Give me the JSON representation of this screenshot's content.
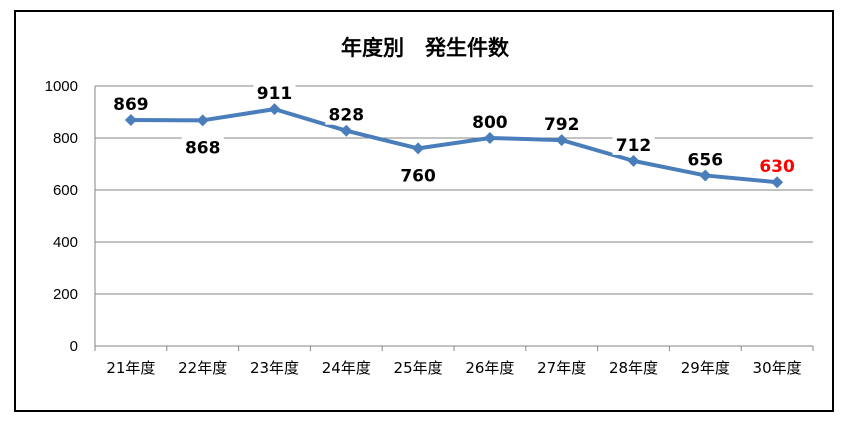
{
  "chart_data": {
    "type": "line",
    "title": "年度別　発生件数",
    "categories": [
      "21年度",
      "22年度",
      "23年度",
      "24年度",
      "25年度",
      "26年度",
      "27年度",
      "28年度",
      "29年度",
      "30年度"
    ],
    "series": [
      {
        "values": [
          869,
          868,
          911,
          828,
          760,
          800,
          792,
          712,
          656,
          630
        ]
      }
    ],
    "ylim": [
      0,
      1000
    ],
    "yticks": [
      0,
      200,
      400,
      600,
      800,
      1000
    ],
    "grid": true,
    "legend": "none",
    "line_color": "#4a7ebb",
    "label_color": "#000000",
    "highlight_label_color": "#ff0000",
    "highlight_index": 9
  }
}
